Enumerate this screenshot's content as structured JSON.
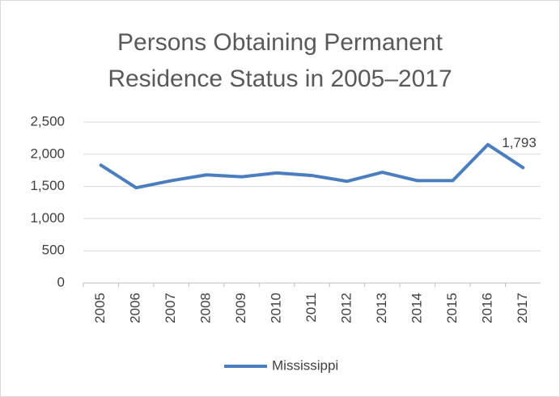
{
  "chart_data": {
    "type": "line",
    "title": "Persons Obtaining Permanent Residence Status in 2005–2017",
    "categories": [
      "2005",
      "2006",
      "2007",
      "2008",
      "2009",
      "2010",
      "2011",
      "2012",
      "2013",
      "2014",
      "2015",
      "2016",
      "2017"
    ],
    "series": [
      {
        "name": "Mississippi",
        "color": "#4a7ebf",
        "values": [
          1830,
          1480,
          1590,
          1680,
          1650,
          1710,
          1670,
          1580,
          1720,
          1590,
          1590,
          2150,
          1793
        ],
        "value_labels": [
          null,
          null,
          null,
          null,
          null,
          null,
          null,
          null,
          null,
          null,
          null,
          null,
          "1,793"
        ]
      }
    ],
    "ylim": [
      0,
      2500
    ],
    "yticks": [
      0,
      500,
      {
        "value": 1000,
        "label": "1,000"
      },
      {
        "value": 1500,
        "label": "1,500"
      },
      {
        "value": 2000,
        "label": "2,000"
      },
      {
        "value": 2500,
        "label": "2,500"
      }
    ],
    "grid": true,
    "legend": "bottom"
  }
}
